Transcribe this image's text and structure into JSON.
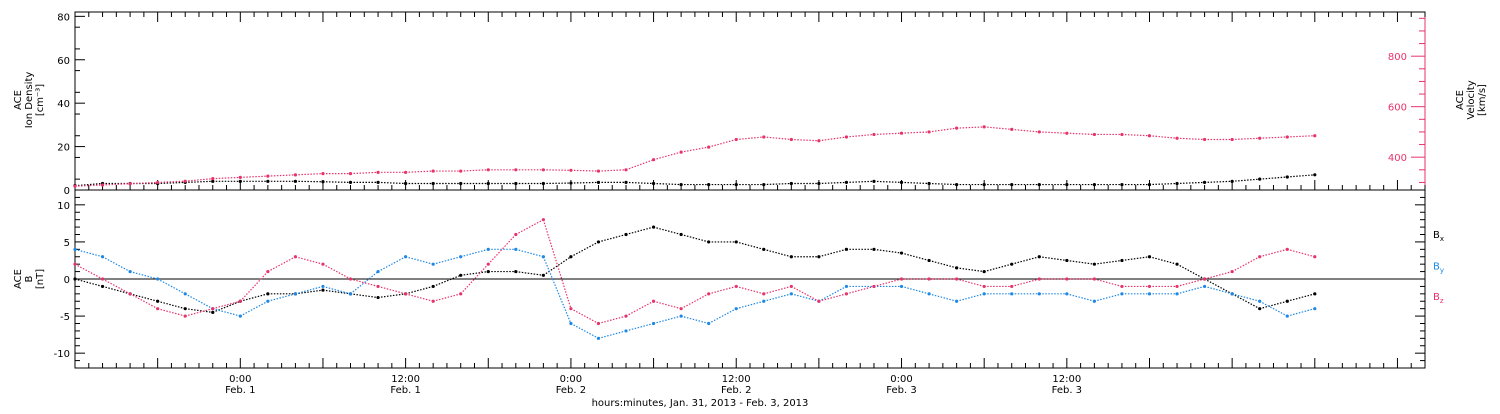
{
  "colors": {
    "black": "#000000",
    "pink": "#e8336a",
    "blue": "#1e88e5"
  },
  "chart_data": [
    {
      "type": "scatter",
      "panel": "top",
      "ylabel_lines": [
        "ACE",
        "Ion Density",
        "[cm⁻³]"
      ],
      "ylim": [
        0,
        82
      ],
      "yticks": [
        0,
        20,
        40,
        60,
        80
      ],
      "y2label_lines": [
        "ACE",
        "Velocity",
        "[km/s]"
      ],
      "y2ticks": [
        400,
        600,
        800
      ],
      "y2lim": [
        270,
        975
      ],
      "series": [
        {
          "name": "Ion Density",
          "axis": "left",
          "color": "black",
          "x": [
            0,
            2,
            4,
            6,
            8,
            10,
            12,
            14,
            16,
            18,
            20,
            22,
            24,
            26,
            28,
            30,
            32,
            34,
            36,
            38,
            40,
            42,
            44,
            46,
            48,
            50,
            52,
            54,
            56,
            58,
            60,
            62,
            64,
            66,
            68,
            70,
            72,
            74,
            76,
            78,
            80,
            82,
            84,
            86,
            88,
            90
          ],
          "y": [
            2,
            3,
            3,
            3,
            3.5,
            4,
            4,
            4,
            4,
            3.8,
            3.5,
            3.5,
            3,
            3,
            3,
            3,
            3,
            3,
            3.2,
            3.5,
            3.5,
            3,
            2.5,
            2.5,
            2.5,
            2.5,
            3,
            3,
            3.5,
            4,
            3.5,
            3,
            2.5,
            2.5,
            2.5,
            2.5,
            2.5,
            2.5,
            2.5,
            2.5,
            3,
            3.5,
            4,
            5,
            6,
            7
          ]
        },
        {
          "name": "Velocity",
          "axis": "right",
          "color": "pink",
          "x": [
            0,
            2,
            4,
            6,
            8,
            10,
            12,
            14,
            16,
            18,
            20,
            22,
            24,
            26,
            28,
            30,
            32,
            34,
            36,
            38,
            40,
            42,
            44,
            46,
            48,
            50,
            52,
            54,
            56,
            58,
            60,
            62,
            64,
            66,
            68,
            70,
            72,
            74,
            76,
            78,
            80,
            82,
            84,
            86,
            88,
            90
          ],
          "y": [
            285,
            290,
            295,
            300,
            305,
            315,
            320,
            325,
            330,
            335,
            335,
            340,
            340,
            345,
            345,
            350,
            350,
            350,
            348,
            345,
            350,
            390,
            420,
            440,
            470,
            480,
            470,
            465,
            480,
            490,
            495,
            500,
            515,
            520,
            510,
            500,
            495,
            490,
            490,
            485,
            475,
            470,
            470,
            475,
            480,
            485
          ]
        }
      ]
    },
    {
      "type": "scatter",
      "panel": "bottom",
      "ylabel_lines": [
        "ACE",
        "B",
        "[nT]"
      ],
      "ylim": [
        -12,
        12
      ],
      "yticks": [
        -10,
        -5,
        0,
        5,
        10
      ],
      "legend_position": "right",
      "xlabel": "hours:minutes, Jan. 31, 2013 - Feb. 3, 2013",
      "x_tick_labels": [
        {
          "t": 12,
          "time": "0:00",
          "date": "Feb. 1"
        },
        {
          "t": 24,
          "time": "12:00",
          "date": "Feb. 1"
        },
        {
          "t": 36,
          "time": "0:00",
          "date": "Feb. 2"
        },
        {
          "t": 48,
          "time": "12:00",
          "date": "Feb. 2"
        },
        {
          "t": 60,
          "time": "0:00",
          "date": "Feb. 3"
        },
        {
          "t": 72,
          "time": "12:00",
          "date": "Feb. 3"
        }
      ],
      "series": [
        {
          "name": "B",
          "sub": "x",
          "color": "black",
          "x": [
            0,
            2,
            4,
            6,
            8,
            10,
            12,
            14,
            16,
            18,
            20,
            22,
            24,
            26,
            28,
            30,
            32,
            34,
            36,
            38,
            40,
            42,
            44,
            46,
            48,
            50,
            52,
            54,
            56,
            58,
            60,
            62,
            64,
            66,
            68,
            70,
            72,
            74,
            76,
            78,
            80,
            82,
            84,
            86,
            88,
            90
          ],
          "y": [
            0,
            -1,
            -2,
            -3,
            -4,
            -4.5,
            -3,
            -2,
            -2,
            -1.5,
            -2,
            -2.5,
            -2,
            -1,
            0.5,
            1,
            1,
            0.5,
            3,
            5,
            6,
            7,
            6,
            5,
            5,
            4,
            3,
            3,
            4,
            4,
            3.5,
            2.5,
            1.5,
            1,
            2,
            3,
            2.5,
            2,
            2.5,
            3,
            2,
            0,
            -2,
            -4,
            -3,
            -2
          ]
        },
        {
          "name": "B",
          "sub": "y",
          "color": "blue",
          "x": [
            0,
            2,
            4,
            6,
            8,
            10,
            12,
            14,
            16,
            18,
            20,
            22,
            24,
            26,
            28,
            30,
            32,
            34,
            36,
            38,
            40,
            42,
            44,
            46,
            48,
            50,
            52,
            54,
            56,
            58,
            60,
            62,
            64,
            66,
            68,
            70,
            72,
            74,
            76,
            78,
            80,
            82,
            84,
            86,
            88,
            90
          ],
          "y": [
            4,
            3,
            1,
            0,
            -2,
            -4,
            -5,
            -3,
            -2,
            -1,
            -2,
            1,
            3,
            2,
            3,
            4,
            4,
            3,
            -6,
            -8,
            -7,
            -6,
            -5,
            -6,
            -4,
            -3,
            -2,
            -3,
            -1,
            -1,
            -1,
            -2,
            -3,
            -2,
            -2,
            -2,
            -2,
            -3,
            -2,
            -2,
            -2,
            -1,
            -2,
            -3,
            -5,
            -4
          ]
        },
        {
          "name": "B",
          "sub": "z",
          "color": "pink",
          "x": [
            0,
            2,
            4,
            6,
            8,
            10,
            12,
            14,
            16,
            18,
            20,
            22,
            24,
            26,
            28,
            30,
            32,
            34,
            36,
            38,
            40,
            42,
            44,
            46,
            48,
            50,
            52,
            54,
            56,
            58,
            60,
            62,
            64,
            66,
            68,
            70,
            72,
            74,
            76,
            78,
            80,
            82,
            84,
            86,
            88,
            90
          ],
          "y": [
            2,
            0,
            -2,
            -4,
            -5,
            -4,
            -3,
            1,
            3,
            2,
            0,
            -1,
            -2,
            -3,
            -2,
            2,
            6,
            8,
            -4,
            -6,
            -5,
            -3,
            -4,
            -2,
            -1,
            -2,
            -1,
            -3,
            -2,
            -1,
            0,
            0,
            0,
            -1,
            -1,
            0,
            0,
            0,
            -1,
            -1,
            -1,
            0,
            1,
            3,
            4,
            3
          ]
        }
      ]
    }
  ]
}
